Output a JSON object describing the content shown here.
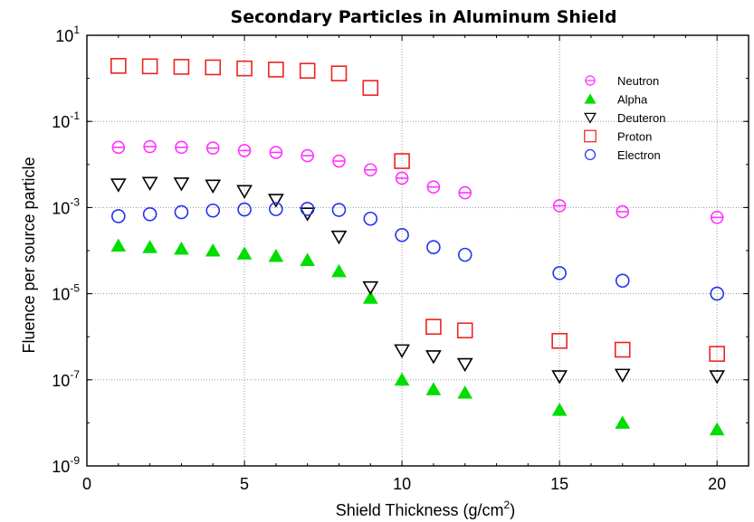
{
  "chart_data": {
    "type": "scatter",
    "title": "Secondary Particles in Aluminum Shield",
    "xlabel": "Shield Thickness (g/cm",
    "xlabel_superscript": "2",
    "xlabel_suffix": ")",
    "ylabel": "Fluence per source particle",
    "xlim": [
      0,
      21
    ],
    "ylim": [
      1e-09,
      10
    ],
    "y_scale": "log",
    "grid": true,
    "legend_position": "top-right",
    "x_ticks": [
      "0",
      "5",
      "10",
      "15",
      "20"
    ],
    "y_ticks": [
      {
        "base": "10",
        "exp": "1"
      },
      {
        "base": "10",
        "exp": "-1"
      },
      {
        "base": "10",
        "exp": "-3"
      },
      {
        "base": "10",
        "exp": "-5"
      },
      {
        "base": "10",
        "exp": "-7"
      },
      {
        "base": "10",
        "exp": "-9"
      }
    ],
    "series": [
      {
        "name": "Neutron",
        "marker": "circle-line",
        "color": "#ff33ff",
        "x": [
          1,
          2,
          3,
          4,
          5,
          6,
          7,
          8,
          9,
          10,
          11,
          12,
          15,
          17,
          20
        ],
        "y": [
          0.025,
          0.026,
          0.025,
          0.024,
          0.021,
          0.019,
          0.016,
          0.012,
          0.0075,
          0.0048,
          0.003,
          0.0022,
          0.0011,
          0.0008,
          0.00059
        ]
      },
      {
        "name": "Alpha",
        "marker": "triangle-up",
        "color": "#00dd00",
        "x": [
          1,
          2,
          3,
          4,
          5,
          6,
          7,
          8,
          9,
          10,
          11,
          12,
          15,
          17,
          20
        ],
        "y": [
          0.00013,
          0.00012,
          0.00011,
          0.0001,
          8.5e-05,
          7.5e-05,
          6e-05,
          3.3e-05,
          8e-06,
          1e-07,
          6e-08,
          5e-08,
          2e-08,
          1e-08,
          7e-09
        ]
      },
      {
        "name": "Deuteron",
        "marker": "triangle-down",
        "color": "#000000",
        "x": [
          1,
          2,
          3,
          4,
          5,
          6,
          7,
          8,
          9,
          10,
          11,
          12,
          15,
          17,
          20
        ],
        "y": [
          0.0034,
          0.0037,
          0.0036,
          0.0032,
          0.0024,
          0.0015,
          0.00072,
          0.00021,
          1.4e-05,
          4.8e-07,
          3.5e-07,
          2.3e-07,
          1.2e-07,
          1.3e-07,
          1.2e-07
        ]
      },
      {
        "name": "Proton",
        "marker": "square",
        "color": "#ee2222",
        "x": [
          1,
          2,
          3,
          4,
          5,
          6,
          7,
          8,
          9,
          10,
          11,
          12,
          15,
          17,
          20
        ],
        "y": [
          1.95,
          1.9,
          1.85,
          1.8,
          1.7,
          1.6,
          1.5,
          1.3,
          0.6,
          0.012,
          1.7e-06,
          1.4e-06,
          8e-07,
          5e-07,
          4e-07
        ]
      },
      {
        "name": "Electron",
        "marker": "circle",
        "color": "#2233ee",
        "x": [
          1,
          2,
          3,
          4,
          5,
          6,
          7,
          8,
          9,
          10,
          11,
          12,
          15,
          17,
          20
        ],
        "y": [
          0.00063,
          0.0007,
          0.00078,
          0.00085,
          0.0009,
          0.00092,
          0.00093,
          0.00088,
          0.00055,
          0.00023,
          0.00012,
          8e-05,
          3e-05,
          2e-05,
          1e-05
        ]
      }
    ]
  }
}
